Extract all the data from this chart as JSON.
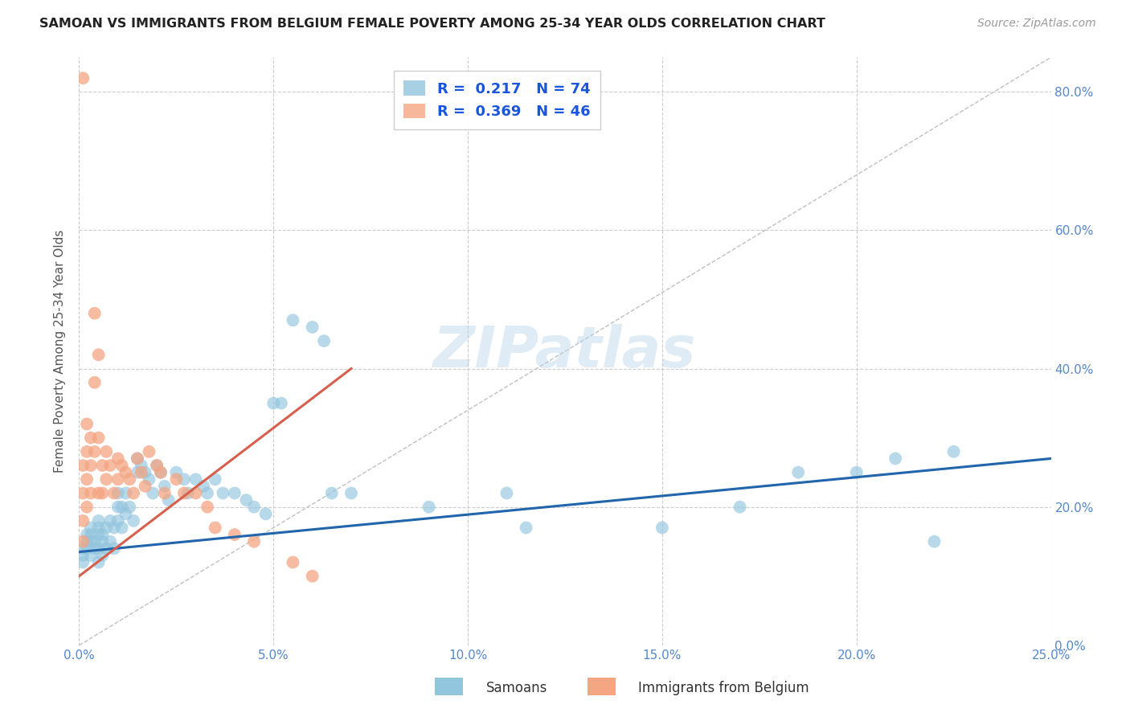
{
  "title": "SAMOAN VS IMMIGRANTS FROM BELGIUM FEMALE POVERTY AMONG 25-34 YEAR OLDS CORRELATION CHART",
  "source": "Source: ZipAtlas.com",
  "ylabel": "Female Poverty Among 25-34 Year Olds",
  "xlim": [
    0.0,
    0.25
  ],
  "ylim": [
    0.0,
    0.85
  ],
  "xticks": [
    0.0,
    0.05,
    0.1,
    0.15,
    0.2,
    0.25
  ],
  "yticks": [
    0.0,
    0.2,
    0.4,
    0.6,
    0.8
  ],
  "samoans_color": "#92c5de",
  "belgium_color": "#f4a582",
  "samoans_line_color": "#2166ac",
  "belgium_line_color": "#d6604d",
  "samoans_R": 0.217,
  "samoans_N": 74,
  "belgium_R": 0.369,
  "belgium_N": 46,
  "watermark": "ZIPatlas",
  "samoans_x": [
    0.001,
    0.001,
    0.001,
    0.002,
    0.002,
    0.002,
    0.003,
    0.003,
    0.003,
    0.003,
    0.004,
    0.004,
    0.005,
    0.005,
    0.005,
    0.005,
    0.005,
    0.006,
    0.006,
    0.006,
    0.007,
    0.007,
    0.008,
    0.008,
    0.009,
    0.009,
    0.01,
    0.01,
    0.01,
    0.011,
    0.011,
    0.012,
    0.012,
    0.013,
    0.014,
    0.015,
    0.015,
    0.016,
    0.017,
    0.018,
    0.019,
    0.02,
    0.021,
    0.022,
    0.023,
    0.025,
    0.027,
    0.028,
    0.03,
    0.032,
    0.033,
    0.035,
    0.037,
    0.04,
    0.043,
    0.045,
    0.048,
    0.05,
    0.052,
    0.055,
    0.06,
    0.063,
    0.065,
    0.07,
    0.09,
    0.11,
    0.115,
    0.15,
    0.17,
    0.185,
    0.2,
    0.21,
    0.22,
    0.225
  ],
  "samoans_y": [
    0.14,
    0.13,
    0.12,
    0.16,
    0.15,
    0.14,
    0.17,
    0.16,
    0.15,
    0.13,
    0.15,
    0.14,
    0.18,
    0.17,
    0.16,
    0.14,
    0.12,
    0.16,
    0.15,
    0.13,
    0.17,
    0.14,
    0.18,
    0.15,
    0.17,
    0.14,
    0.22,
    0.2,
    0.18,
    0.2,
    0.17,
    0.22,
    0.19,
    0.2,
    0.18,
    0.27,
    0.25,
    0.26,
    0.25,
    0.24,
    0.22,
    0.26,
    0.25,
    0.23,
    0.21,
    0.25,
    0.24,
    0.22,
    0.24,
    0.23,
    0.22,
    0.24,
    0.22,
    0.22,
    0.21,
    0.2,
    0.19,
    0.35,
    0.35,
    0.47,
    0.46,
    0.44,
    0.22,
    0.22,
    0.2,
    0.22,
    0.17,
    0.17,
    0.2,
    0.25,
    0.25,
    0.27,
    0.15,
    0.28
  ],
  "belgium_x": [
    0.001,
    0.001,
    0.001,
    0.001,
    0.001,
    0.002,
    0.002,
    0.002,
    0.002,
    0.003,
    0.003,
    0.003,
    0.004,
    0.004,
    0.004,
    0.005,
    0.005,
    0.005,
    0.006,
    0.006,
    0.007,
    0.007,
    0.008,
    0.009,
    0.01,
    0.01,
    0.011,
    0.012,
    0.013,
    0.014,
    0.015,
    0.016,
    0.017,
    0.018,
    0.02,
    0.021,
    0.022,
    0.025,
    0.027,
    0.03,
    0.033,
    0.035,
    0.04,
    0.045,
    0.055,
    0.06
  ],
  "belgium_y": [
    0.82,
    0.26,
    0.22,
    0.18,
    0.15,
    0.32,
    0.28,
    0.24,
    0.2,
    0.3,
    0.26,
    0.22,
    0.48,
    0.38,
    0.28,
    0.42,
    0.3,
    0.22,
    0.26,
    0.22,
    0.28,
    0.24,
    0.26,
    0.22,
    0.27,
    0.24,
    0.26,
    0.25,
    0.24,
    0.22,
    0.27,
    0.25,
    0.23,
    0.28,
    0.26,
    0.25,
    0.22,
    0.24,
    0.22,
    0.22,
    0.2,
    0.17,
    0.16,
    0.15,
    0.12,
    0.1
  ],
  "belgium_line_x": [
    0.0,
    0.07
  ],
  "belgium_line_y": [
    0.1,
    0.4
  ],
  "samoans_line_x": [
    0.0,
    0.25
  ],
  "samoans_line_y": [
    0.135,
    0.27
  ]
}
